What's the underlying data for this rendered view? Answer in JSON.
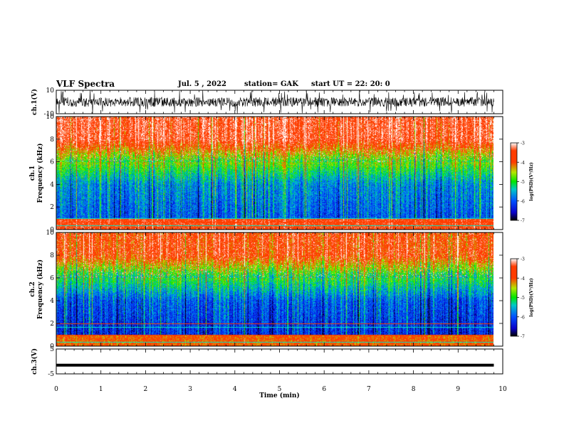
{
  "header": {
    "title": "VLF Spectra",
    "date": "Jul. 5 , 2022",
    "station": "station= GAK",
    "start_ut": "start UT = 22: 20: 0"
  },
  "colors": {
    "colormap": [
      "#000000",
      "#0a00c8",
      "#0050ff",
      "#00c8c8",
      "#00e600",
      "#b4e600",
      "#ff3c00",
      "#ff3c00",
      "#ffffff"
    ],
    "trace": "#000000",
    "axis": "#000000"
  },
  "chart_data": [
    {
      "type": "line",
      "panel": "waveform-ch1",
      "ylabel": "ch.1(V)",
      "y_ticks": [
        "10",
        "-10"
      ],
      "ylim": [
        -10,
        10
      ],
      "xlim": [
        0,
        10
      ],
      "description_values": {
        "typical_range_V": [
          -4,
          4
        ],
        "occasional_peaks_V": [
          -10,
          10
        ]
      }
    },
    {
      "type": "heatmap",
      "panel": "spectrogram-ch1",
      "ylabel_top": "ch.1",
      "ylabel": "Frequency (kHz)",
      "y_ticks": [
        "0",
        "2",
        "4",
        "6",
        "8",
        "10"
      ],
      "ylim": [
        0,
        10
      ],
      "xlim": [
        0,
        9.8
      ],
      "colorbar": {
        "label": "log(PSD)(V²/Hz)",
        "ticks": [
          "-3",
          "-4",
          "-5",
          "-6",
          "-7"
        ],
        "range": [
          -7,
          -3
        ]
      },
      "band_profile": {
        "below_1kHz": -3.6,
        "1_to_4kHz": -6.0,
        "4_to_6kHz": -5.0,
        "above_6kHz": -3.5
      },
      "horizontal_lines_kHz": [
        0.4,
        0.7,
        1.0
      ]
    },
    {
      "type": "heatmap",
      "panel": "spectrogram-ch2",
      "ylabel_top": "ch.2",
      "ylabel": "Frequency (kHz)",
      "y_ticks": [
        "0",
        "2",
        "4",
        "6",
        "8",
        "10"
      ],
      "ylim": [
        0,
        10
      ],
      "xlim": [
        0,
        9.8
      ],
      "colorbar": {
        "label": "log(PSD)(V²/Hz)",
        "ticks": [
          "-3",
          "-4",
          "-5",
          "-6",
          "-7"
        ],
        "range": [
          -7,
          -3
        ]
      },
      "band_profile": {
        "below_1kHz": -4.0,
        "1_to_4kHz": -6.3,
        "4_to_6kHz": -5.3,
        "above_6kHz": -3.8
      },
      "horizontal_lines_kHz": [
        0.4,
        1.0,
        1.7,
        2.0
      ]
    },
    {
      "type": "line",
      "panel": "waveform-ch3",
      "ylabel": "ch.3(V)",
      "y_ticks": [
        "5",
        "-5"
      ],
      "ylim": [
        -5,
        5
      ],
      "xlim": [
        0,
        10
      ],
      "x": [
        0,
        9.8
      ],
      "y": [
        -1.5,
        -1.5
      ]
    }
  ],
  "x_axis": {
    "label": "Time (min)",
    "ticks": [
      "0",
      "1",
      "2",
      "3",
      "4",
      "5",
      "6",
      "7",
      "8",
      "9",
      "10"
    ],
    "range": [
      0,
      10
    ]
  }
}
